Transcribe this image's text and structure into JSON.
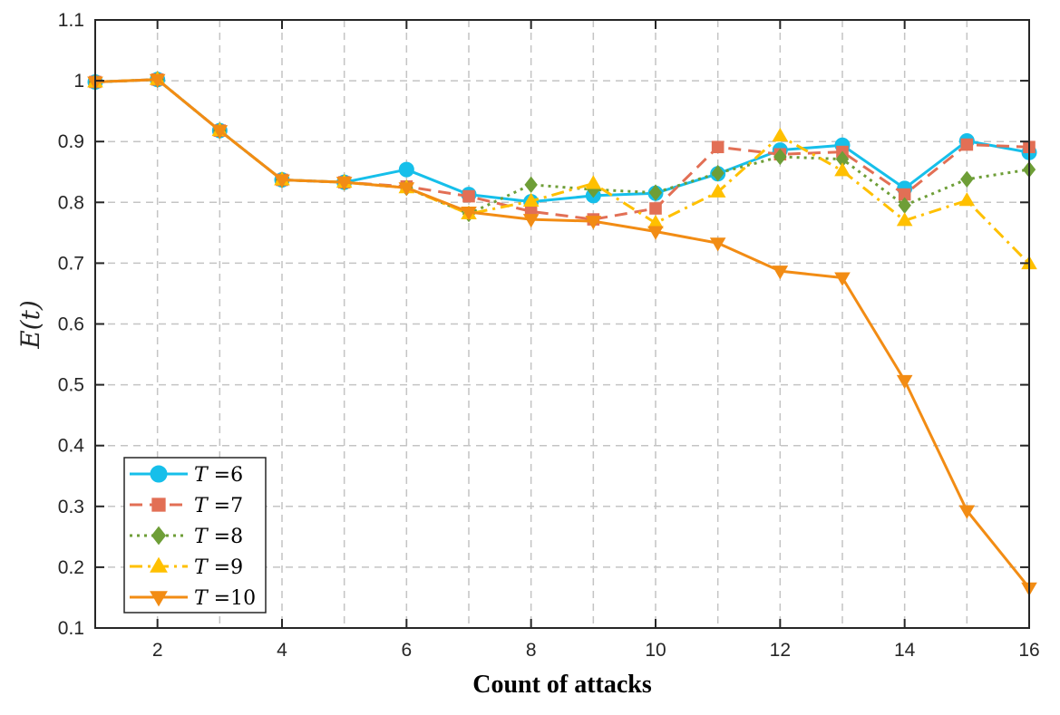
{
  "chart_data": {
    "type": "line",
    "xlabel": "Count of attacks",
    "ylabel": "E(t)",
    "xlim": [
      1,
      16
    ],
    "ylim": [
      0.1,
      1.1
    ],
    "xticks": [
      2,
      4,
      6,
      8,
      10,
      12,
      14,
      16
    ],
    "yticks": [
      0.1,
      0.2,
      0.3,
      0.4,
      0.5,
      0.6,
      0.7,
      0.8,
      0.9,
      1,
      1.1
    ],
    "xtick_labels": [
      "2",
      "4",
      "6",
      "8",
      "10",
      "12",
      "14",
      "16"
    ],
    "ytick_labels": [
      "0.1",
      "0.2",
      "0.3",
      "0.4",
      "0.5",
      "0.6",
      "0.7",
      "0.8",
      "0.9",
      "1",
      "1.1"
    ],
    "grid": true,
    "legend_position": "bottom-left",
    "x": [
      1,
      2,
      3,
      4,
      5,
      6,
      7,
      8,
      9,
      10,
      11,
      12,
      13,
      14,
      15,
      16
    ],
    "series": [
      {
        "name": "T =6",
        "var": "T",
        "val": "6",
        "color": "#16BFEA",
        "dash": "solid",
        "marker": "circle",
        "values": [
          0.998,
          1.002,
          0.918,
          0.837,
          0.833,
          0.854,
          0.813,
          0.801,
          0.811,
          0.815,
          0.847,
          0.886,
          0.894,
          0.823,
          0.901,
          0.882
        ]
      },
      {
        "name": "T =7",
        "var": "T",
        "val": "7",
        "color": "#E26F55",
        "dash": "dashed",
        "marker": "square",
        "values": [
          0.998,
          1.002,
          0.918,
          0.837,
          0.833,
          0.826,
          0.81,
          0.785,
          0.772,
          0.79,
          0.891,
          0.879,
          0.883,
          0.813,
          0.895,
          0.891
        ]
      },
      {
        "name": "T =8",
        "var": "T",
        "val": "8",
        "color": "#6E9E37",
        "dash": "dotted",
        "marker": "diamond",
        "values": [
          0.998,
          1.002,
          0.918,
          0.837,
          0.833,
          0.824,
          0.781,
          0.829,
          0.821,
          0.816,
          0.848,
          0.875,
          0.871,
          0.795,
          0.838,
          0.854
        ]
      },
      {
        "name": "T =9",
        "var": "T",
        "val": "9",
        "color": "#FFC000",
        "dash": "dashdot",
        "marker": "triangle-up",
        "values": [
          0.998,
          1.002,
          0.918,
          0.837,
          0.833,
          0.824,
          0.781,
          0.802,
          0.831,
          0.766,
          0.817,
          0.909,
          0.852,
          0.77,
          0.803,
          0.699
        ]
      },
      {
        "name": "T =10",
        "var": "T",
        "val": "10",
        "color": "#F28C14",
        "dash": "solid",
        "marker": "triangle-down",
        "values": [
          0.998,
          1.002,
          0.918,
          0.837,
          0.833,
          0.824,
          0.784,
          0.772,
          0.769,
          0.752,
          0.733,
          0.687,
          0.676,
          0.507,
          0.293,
          0.166
        ]
      }
    ]
  }
}
